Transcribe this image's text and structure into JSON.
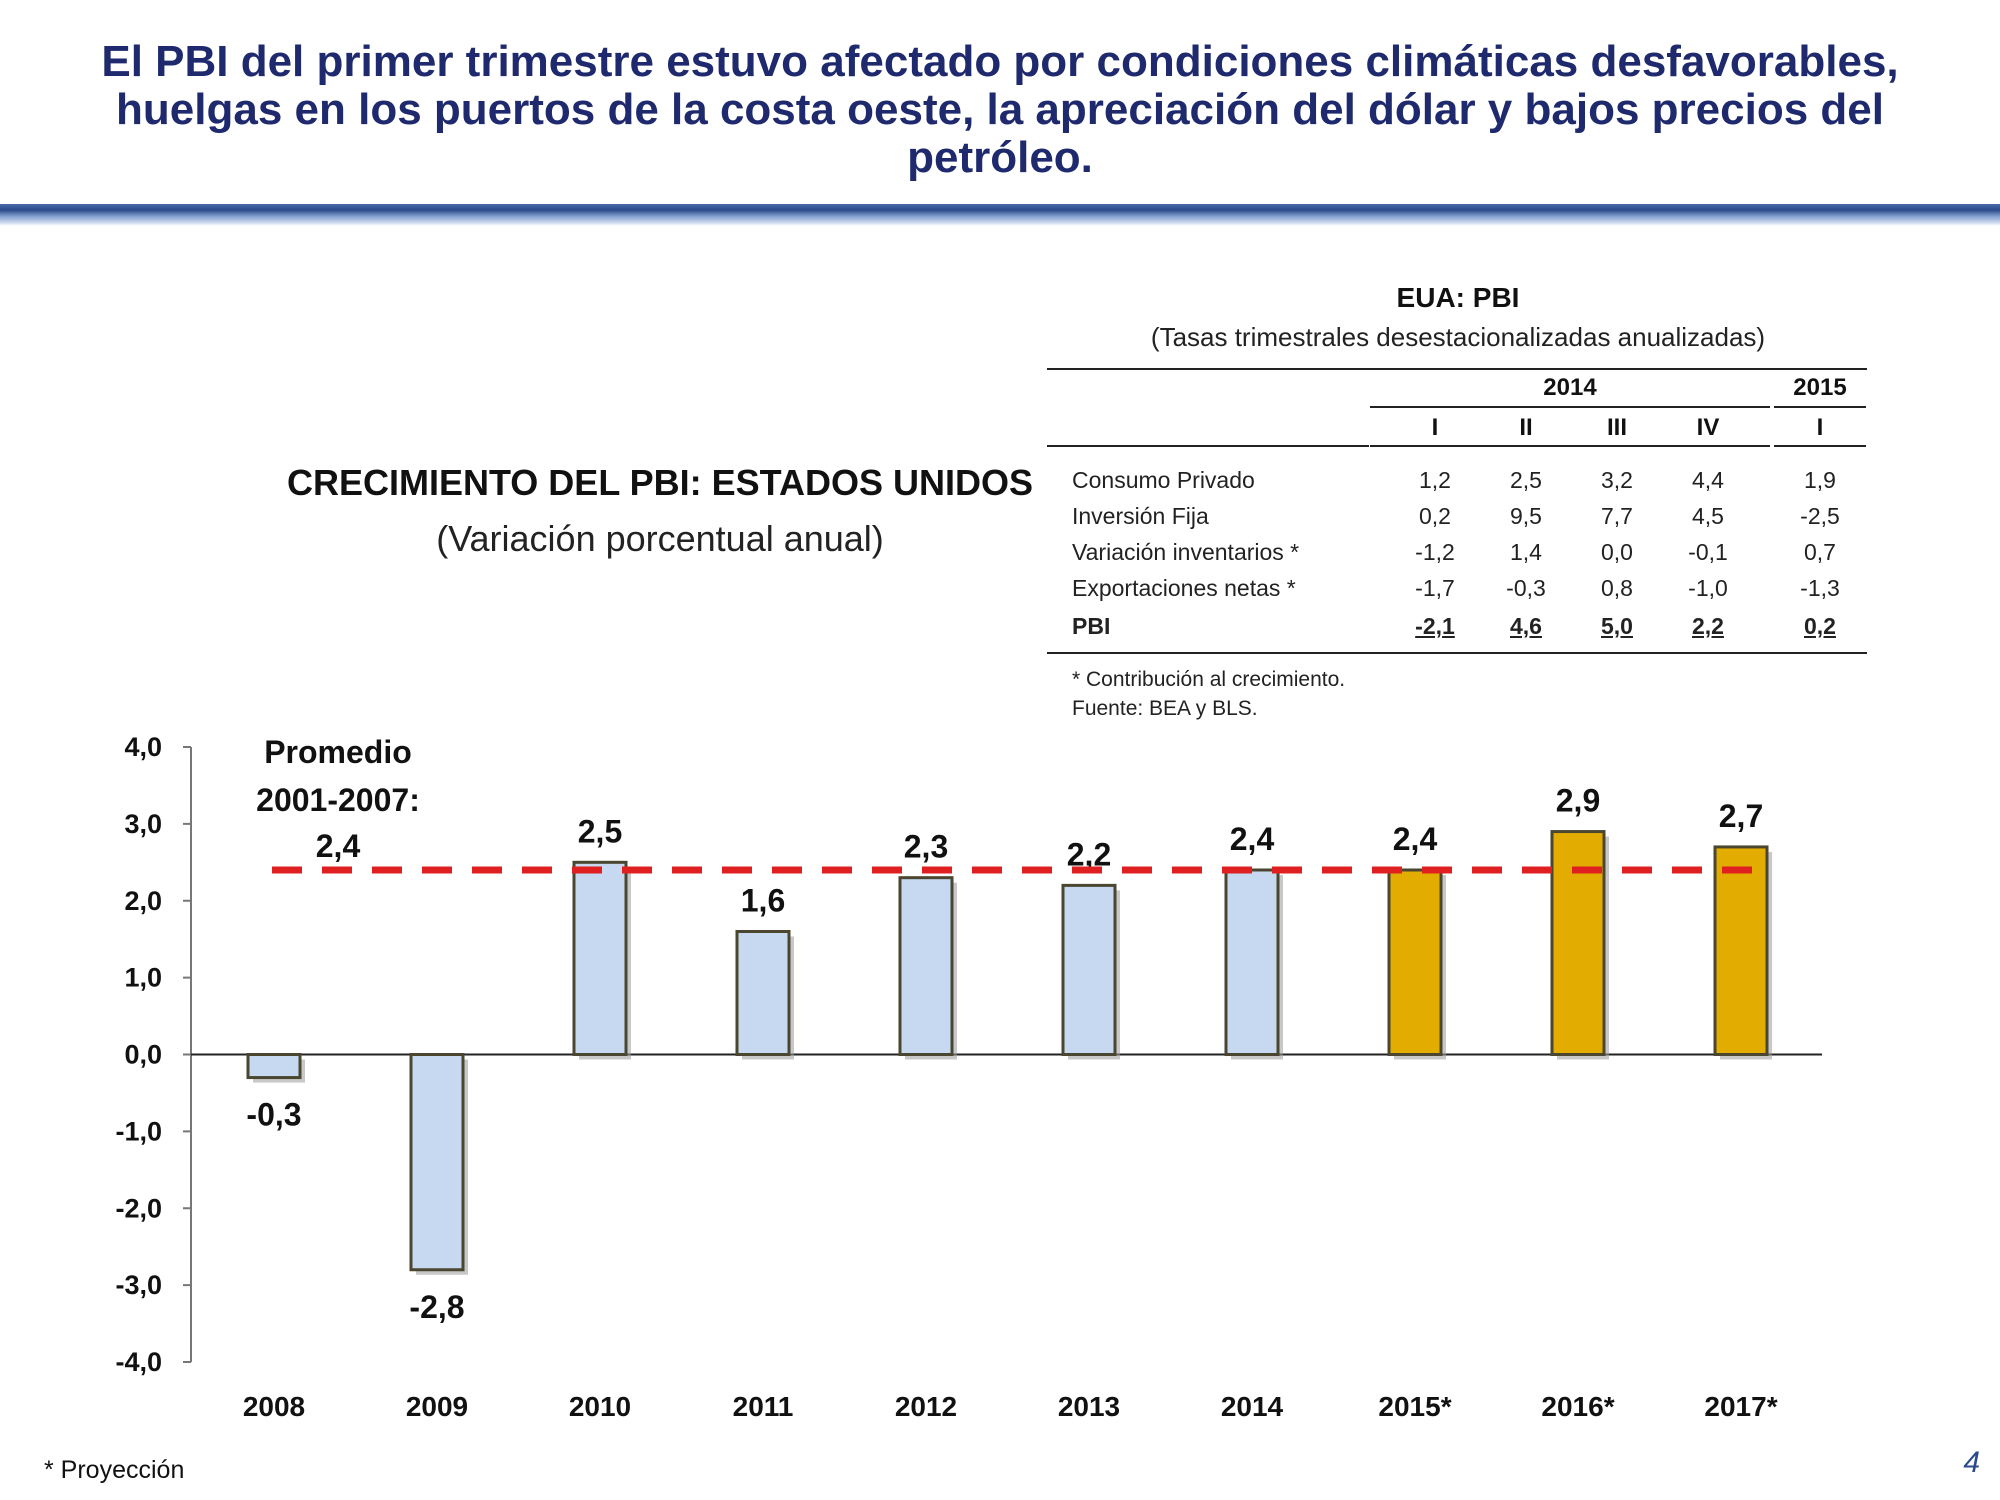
{
  "slide": {
    "title": "El PBI del primer trimestre estuvo afectado por condiciones climáticas desfavorables, huelgas en los puertos de la costa oeste, la apreciación del dólar y bajos precios del petróleo.",
    "page_number": "4",
    "footnote": "* Proyección"
  },
  "table": {
    "title": "EUA: PBI",
    "subtitle": "(Tasas trimestrales desestacionalizadas anualizadas)",
    "year_2014": "2014",
    "year_2015": "2015",
    "quarters": [
      "I",
      "II",
      "III",
      "IV",
      "I"
    ],
    "rows": [
      {
        "label": "Consumo Privado",
        "values": [
          "1,2",
          "2,5",
          "3,2",
          "4,4",
          "1,9"
        ]
      },
      {
        "label": "Inversión Fija",
        "values": [
          "0,2",
          "9,5",
          "7,7",
          "4,5",
          "-2,5"
        ]
      },
      {
        "label": "Variación inventarios *",
        "values": [
          "-1,2",
          "1,4",
          "0,0",
          "-0,1",
          "0,7"
        ]
      },
      {
        "label": "Exportaciones netas *",
        "values": [
          "-1,7",
          "-0,3",
          "0,8",
          "-1,0",
          "-1,3"
        ]
      },
      {
        "label": "PBI",
        "values": [
          "-2,1",
          "4,6",
          "5,0",
          "2,2",
          "0,2"
        ]
      }
    ],
    "note_1": "* Contribución al crecimiento.",
    "note_2": "Fuente: BEA y BLS."
  },
  "chart_data": {
    "type": "bar",
    "title": "CRECIMIENTO DEL PBI: ESTADOS UNIDOS",
    "subtitle": "(Variación porcentual anual)",
    "categories": [
      "2008",
      "2009",
      "2010",
      "2011",
      "2012",
      "2013",
      "2014",
      "2015*",
      "2016*",
      "2017*"
    ],
    "values": [
      -0.3,
      -2.8,
      2.5,
      1.6,
      2.3,
      2.2,
      2.4,
      2.4,
      2.9,
      2.7
    ],
    "value_labels": [
      "-0,3",
      "-2,8",
      "2,5",
      "1,6",
      "2,3",
      "2,2",
      "2,4",
      "2,4",
      "2,9",
      "2,7"
    ],
    "projected": [
      false,
      false,
      false,
      false,
      false,
      false,
      false,
      true,
      true,
      true
    ],
    "yticks": [
      "4,0",
      "3,0",
      "2,0",
      "1,0",
      "0,0",
      "-1,0",
      "-2,0",
      "-3,0",
      "-4,0"
    ],
    "ylim": [
      -4,
      4
    ],
    "average": {
      "value": 2.4,
      "label_line1": "Promedio",
      "label_line2": "2001-2007:",
      "label_line3": "2,4"
    },
    "colors": {
      "historical": "#c6d9f1",
      "projection": "#e2ac00",
      "bar_border": "#4a4630",
      "average_line": "#e02020"
    }
  }
}
